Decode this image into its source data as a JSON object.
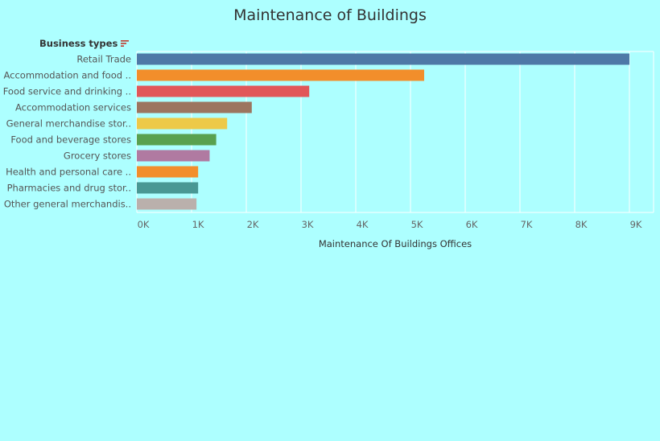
{
  "page": {
    "background": "#adffff"
  },
  "legend": {
    "header": "Business types",
    "sort_icon": "sort-descending-icon",
    "sort_icon_color": "#c0392b"
  },
  "chart_data": {
    "type": "bar",
    "orientation": "horizontal",
    "title": "Maintenance of Buildings",
    "xlabel": "Maintenance Of Buildings Offices",
    "ylabel": "Business types",
    "categories": [
      "Retail Trade",
      "Accommodation and food ..",
      "Food service and drinking ..",
      "Accommodation services",
      "General merchandise stor..",
      "Food and beverage stores",
      "Grocery stores",
      "Health and personal care ..",
      "Pharmacies and drug stor..",
      "Other general merchandis.."
    ],
    "values": [
      9000,
      5250,
      3150,
      2100,
      1650,
      1450,
      1330,
      1120,
      1120,
      1090
    ],
    "colors": [
      "#4e79a7",
      "#f28e2b",
      "#e15759",
      "#9c755f",
      "#edc948",
      "#59a14f",
      "#b07aa1",
      "#f28e2b",
      "#499894",
      "#bab0ac"
    ],
    "xlim": [
      0,
      9000
    ],
    "xticks": [
      0,
      1000,
      2000,
      3000,
      4000,
      5000,
      6000,
      7000,
      8000,
      9000
    ],
    "xtick_labels": [
      "0K",
      "1K",
      "2K",
      "3K",
      "4K",
      "5K",
      "6K",
      "7K",
      "8K",
      "9K"
    ],
    "grid": true,
    "gridline_color": "#ffffff",
    "legend": "none"
  }
}
